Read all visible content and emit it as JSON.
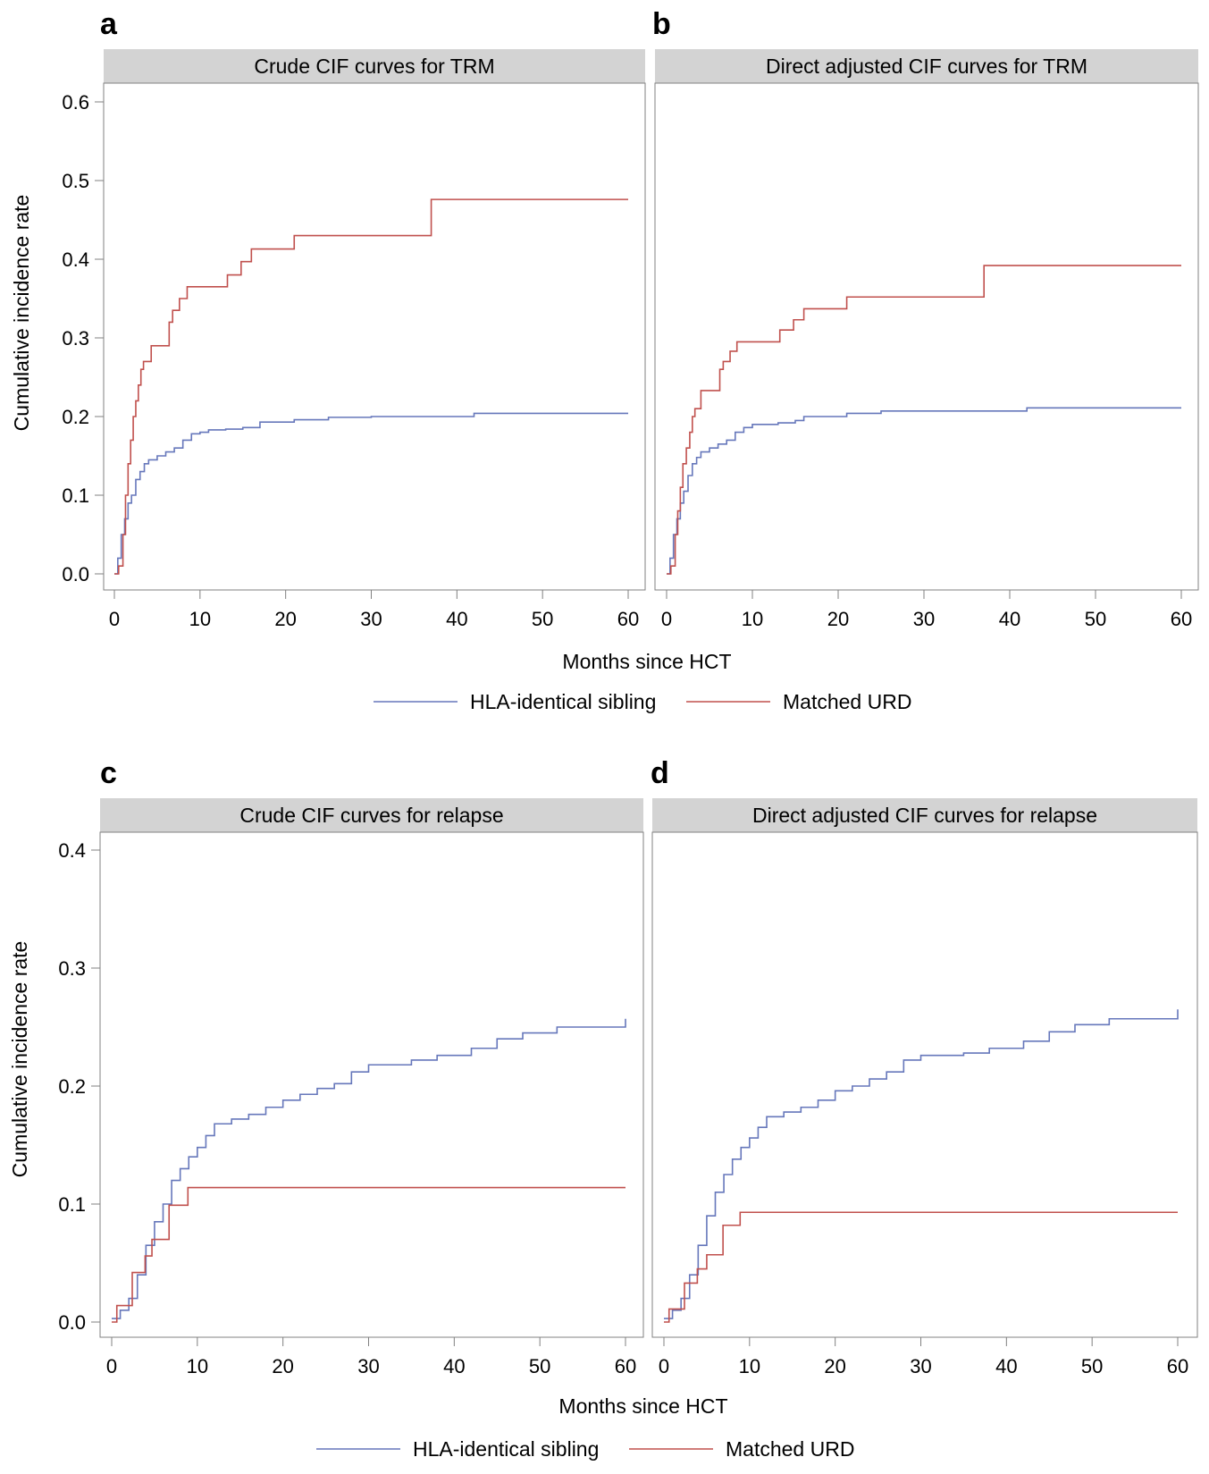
{
  "figure": {
    "background": "#ffffff",
    "strip_color": "#d3d3d3",
    "axis_color": "#808080",
    "series_colors": {
      "sibling": "#6677bb",
      "urd": "#c0504d"
    }
  },
  "legends": {
    "top": [
      {
        "label": "HLA-identical sibling",
        "color": "#6677bb"
      },
      {
        "label": "Matched URD",
        "color": "#c0504d"
      }
    ],
    "bottom": [
      {
        "label": "HLA-identical sibling",
        "color": "#6677bb"
      },
      {
        "label": "Matched URD",
        "color": "#c0504d"
      }
    ]
  },
  "row_titles": {
    "top": {
      "xlabel": "Months since HCT",
      "ylabel": "Cumulative incidence rate"
    },
    "bottom": {
      "xlabel": "Months since HCT",
      "ylabel": "Cumulative incidence rate"
    }
  },
  "chart_data": [
    {
      "type": "line",
      "panel": "a",
      "title": "Crude CIF curves for TRM",
      "xlabel": "Months since HCT",
      "ylabel": "Cumulative incidence rate",
      "xlim": [
        0,
        60
      ],
      "ylim": [
        0,
        0.6
      ],
      "xticks": [
        0,
        10,
        20,
        30,
        40,
        50,
        60
      ],
      "xtick_labels": [
        "0",
        "10",
        "20",
        "30",
        "40",
        "50",
        "60"
      ],
      "yticks": [
        0.0,
        0.1,
        0.2,
        0.3,
        0.4,
        0.5,
        0.6
      ],
      "ytick_labels": [
        "0.0",
        "0.1",
        "0.2",
        "0.3",
        "0.4",
        "0.5",
        "0.6"
      ],
      "series": [
        {
          "name": "HLA-identical sibling",
          "key": "sibling",
          "x": [
            0,
            0.4,
            0.8,
            1.2,
            1.6,
            2.0,
            2.5,
            3.0,
            3.5,
            4.0,
            5.0,
            6.0,
            7.0,
            8.0,
            9.0,
            10.0,
            11.0,
            13.0,
            15.0,
            17.0,
            21.0,
            25.0,
            30.0,
            42.0,
            60.0
          ],
          "y": [
            0,
            0.02,
            0.05,
            0.07,
            0.09,
            0.1,
            0.12,
            0.13,
            0.14,
            0.145,
            0.15,
            0.155,
            0.16,
            0.17,
            0.178,
            0.18,
            0.183,
            0.184,
            0.186,
            0.193,
            0.196,
            0.199,
            0.2,
            0.204,
            0.204
          ]
        },
        {
          "name": "Matched URD",
          "key": "urd",
          "x": [
            0,
            0.5,
            1.0,
            1.3,
            1.6,
            1.9,
            2.2,
            2.5,
            2.8,
            3.1,
            3.4,
            4.3,
            6.4,
            6.8,
            7.6,
            8.5,
            13.2,
            14.8,
            16.0,
            21.0,
            37.0,
            60.0
          ],
          "y": [
            0,
            0.01,
            0.05,
            0.1,
            0.14,
            0.17,
            0.2,
            0.22,
            0.24,
            0.26,
            0.27,
            0.29,
            0.32,
            0.335,
            0.35,
            0.365,
            0.38,
            0.397,
            0.413,
            0.43,
            0.476,
            0.476
          ]
        }
      ]
    },
    {
      "type": "line",
      "panel": "b",
      "title": "Direct adjusted CIF curves for TRM",
      "xlabel": "Months since HCT",
      "ylabel": "Cumulative incidence rate",
      "xlim": [
        0,
        60
      ],
      "ylim": [
        0,
        0.6
      ],
      "xticks": [
        0,
        10,
        20,
        30,
        40,
        50,
        60
      ],
      "xtick_labels": [
        "0",
        "10",
        "20",
        "30",
        "40",
        "50",
        "60"
      ],
      "series": [
        {
          "name": "HLA-identical sibling",
          "key": "sibling",
          "x": [
            0,
            0.4,
            0.8,
            1.2,
            1.6,
            2.0,
            2.5,
            3.0,
            3.5,
            4.0,
            5.0,
            6.0,
            7.0,
            8.0,
            9.0,
            10.0,
            13.0,
            15.0,
            16.0,
            21.0,
            25.0,
            42.0,
            60.0
          ],
          "y": [
            0,
            0.02,
            0.05,
            0.07,
            0.09,
            0.105,
            0.125,
            0.14,
            0.148,
            0.155,
            0.16,
            0.165,
            0.17,
            0.18,
            0.186,
            0.19,
            0.192,
            0.195,
            0.2,
            0.204,
            0.207,
            0.211,
            0.211
          ]
        },
        {
          "name": "Matched URD",
          "key": "urd",
          "x": [
            0,
            0.5,
            1.0,
            1.3,
            1.6,
            1.9,
            2.3,
            2.7,
            3.0,
            3.3,
            4.0,
            6.2,
            6.6,
            7.4,
            8.2,
            13.2,
            14.8,
            16.0,
            21.0,
            37.0,
            60.0
          ],
          "y": [
            0,
            0.01,
            0.05,
            0.08,
            0.11,
            0.14,
            0.16,
            0.18,
            0.2,
            0.21,
            0.233,
            0.26,
            0.27,
            0.283,
            0.295,
            0.31,
            0.323,
            0.337,
            0.352,
            0.392,
            0.392
          ]
        }
      ]
    },
    {
      "type": "line",
      "panel": "c",
      "title": "Crude CIF curves for relapse",
      "xlabel": "Months since HCT",
      "ylabel": "Cumulative incidence rate",
      "xlim": [
        0,
        60
      ],
      "ylim": [
        0,
        0.4
      ],
      "xticks": [
        0,
        10,
        20,
        30,
        40,
        50,
        60
      ],
      "xtick_labels": [
        "0",
        "10",
        "20",
        "30",
        "40",
        "50",
        "60"
      ],
      "yticks": [
        0.0,
        0.1,
        0.2,
        0.3,
        0.4
      ],
      "ytick_labels": [
        "0.0",
        "0.1",
        "0.2",
        "0.3",
        "0.4"
      ],
      "series": [
        {
          "name": "HLA-identical sibling",
          "key": "sibling",
          "x": [
            0,
            1.0,
            2.0,
            3.0,
            4.0,
            5.0,
            6.0,
            7.0,
            8.0,
            9.0,
            10.0,
            11.0,
            12.0,
            14.0,
            16.0,
            18.0,
            20.0,
            22.0,
            24.0,
            26.0,
            28.0,
            30.0,
            35.0,
            38.0,
            42.0,
            45.0,
            48.0,
            52.0,
            55.0,
            60.0
          ],
          "y": [
            0.003,
            0.01,
            0.02,
            0.04,
            0.065,
            0.085,
            0.1,
            0.12,
            0.13,
            0.14,
            0.148,
            0.158,
            0.168,
            0.172,
            0.176,
            0.182,
            0.188,
            0.193,
            0.198,
            0.202,
            0.212,
            0.218,
            0.222,
            0.226,
            0.232,
            0.24,
            0.245,
            0.25,
            0.25,
            0.257
          ]
        },
        {
          "name": "Matched URD",
          "key": "urd",
          "x": [
            0,
            0.6,
            2.4,
            3.9,
            4.7,
            6.7,
            8.9,
            60.0
          ],
          "y": [
            0,
            0.014,
            0.042,
            0.056,
            0.07,
            0.099,
            0.114,
            0.114
          ]
        }
      ]
    },
    {
      "type": "line",
      "panel": "d",
      "title": "Direct adjusted CIF curves for relapse",
      "xlabel": "Months since HCT",
      "ylabel": "Cumulative incidence rate",
      "xlim": [
        0,
        60
      ],
      "ylim": [
        0,
        0.4
      ],
      "xticks": [
        0,
        10,
        20,
        30,
        40,
        50,
        60
      ],
      "xtick_labels": [
        "0",
        "10",
        "20",
        "30",
        "40",
        "50",
        "60"
      ],
      "series": [
        {
          "name": "HLA-identical sibling",
          "key": "sibling",
          "x": [
            0,
            1.0,
            2.0,
            3.0,
            4.0,
            5.0,
            6.0,
            7.0,
            8.0,
            9.0,
            10.0,
            11.0,
            12.0,
            14.0,
            16.0,
            18.0,
            20.0,
            22.0,
            24.0,
            26.0,
            28.0,
            30.0,
            35.0,
            38.0,
            42.0,
            45.0,
            48.0,
            52.0,
            55.0,
            60.0
          ],
          "y": [
            0.003,
            0.01,
            0.02,
            0.04,
            0.065,
            0.09,
            0.11,
            0.125,
            0.138,
            0.148,
            0.156,
            0.165,
            0.174,
            0.178,
            0.182,
            0.188,
            0.196,
            0.2,
            0.206,
            0.212,
            0.222,
            0.226,
            0.228,
            0.232,
            0.238,
            0.246,
            0.252,
            0.257,
            0.257,
            0.265
          ]
        },
        {
          "name": "Matched URD",
          "key": "urd",
          "x": [
            0,
            0.6,
            2.4,
            3.9,
            5.0,
            6.9,
            8.9,
            60.0
          ],
          "y": [
            0,
            0.011,
            0.033,
            0.045,
            0.057,
            0.082,
            0.093,
            0.093
          ]
        }
      ]
    }
  ]
}
